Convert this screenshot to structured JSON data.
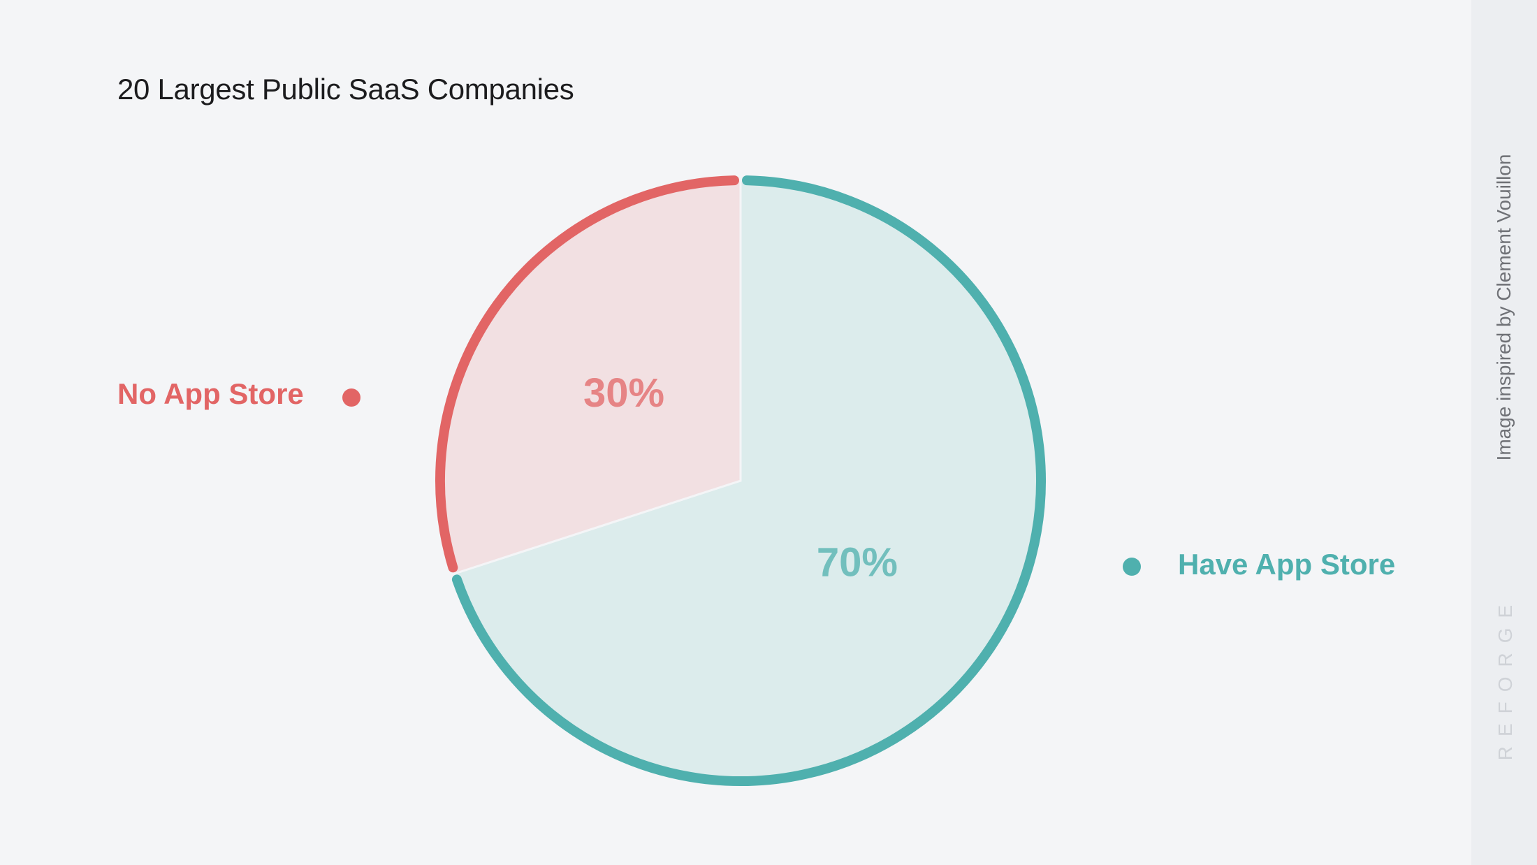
{
  "chart_data": {
    "type": "pie",
    "title": "20 Largest Public SaaS Companies",
    "slices": [
      {
        "label": "Have App Store",
        "value": 70,
        "display": "70%",
        "color": "#4fb0ae",
        "fill": "#dcecec"
      },
      {
        "label": "No App Store",
        "value": 30,
        "display": "30%",
        "color": "#e26565",
        "fill": "#f2e0e2"
      }
    ],
    "legend": "sides"
  },
  "credit": "Image inspired by Clement Vouillon",
  "brand": "REFORGE"
}
